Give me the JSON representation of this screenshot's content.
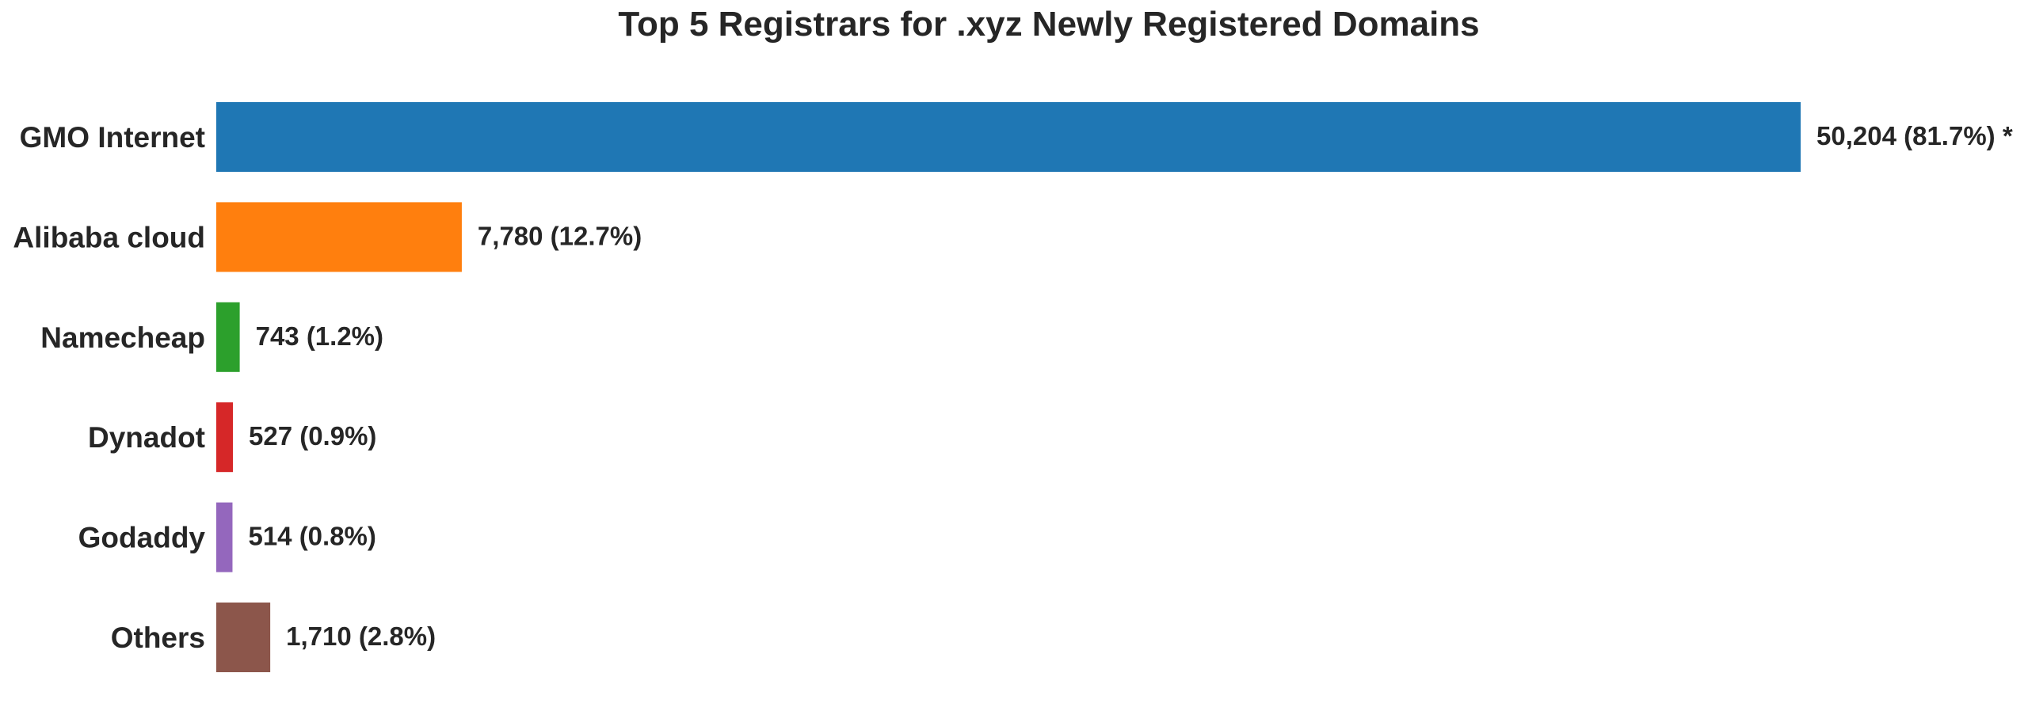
{
  "chart_data": {
    "type": "bar",
    "orientation": "horizontal",
    "title": "Top 5 Registrars for .xyz Newly Registered Domains",
    "xlabel": "",
    "ylabel": "",
    "grid": false,
    "legend": "none",
    "categories": [
      "GMO Internet",
      "Alibaba cloud",
      "Namecheap",
      "Dynadot",
      "Godaddy",
      "Others"
    ],
    "values": [
      50204,
      7780,
      743,
      527,
      514,
      1710
    ],
    "data_labels": [
      "50,204 (81.7%) *",
      "7,780 (12.7%)",
      "743 (1.2%)",
      "527 (0.9%)",
      "514 (0.8%)",
      "1,710 (2.8%)"
    ],
    "colors": [
      "#1f77b4",
      "#ff7f0e",
      "#2ca02c",
      "#d62728",
      "#9467bd",
      "#8c564b"
    ]
  }
}
